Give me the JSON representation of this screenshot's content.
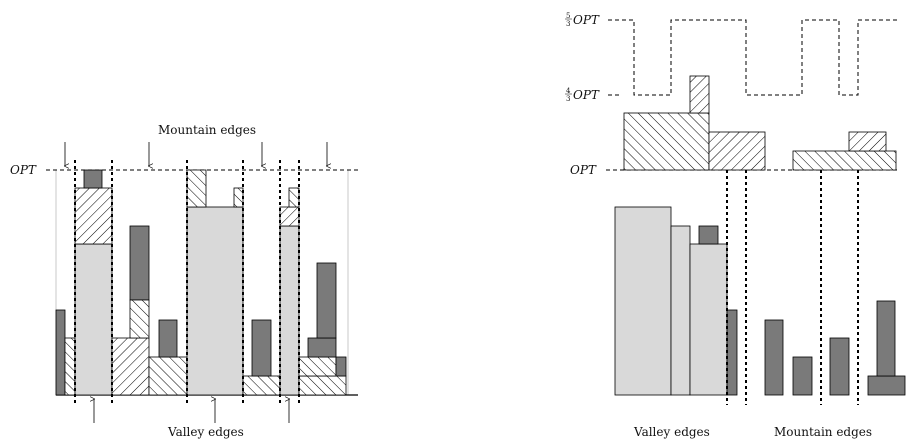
{
  "left_figure": {
    "opt_label": "OPT",
    "mountain_label": "Mountain edges",
    "valley_label": "Valley edges"
  },
  "right_figure": {
    "opt_label": "OPT",
    "four_thirds_num": "4",
    "four_thirds_den": "3",
    "five_thirds_num": "5",
    "five_thirds_den": "3",
    "four_thirds_label": "OPT",
    "five_thirds_label": "OPT",
    "valley_label": "Valley edges",
    "mountain_label": "Mountain edges"
  },
  "colors": {
    "light_item": "#d9d9d9",
    "dark_item": "#7a7a7a",
    "line": "#000000"
  }
}
